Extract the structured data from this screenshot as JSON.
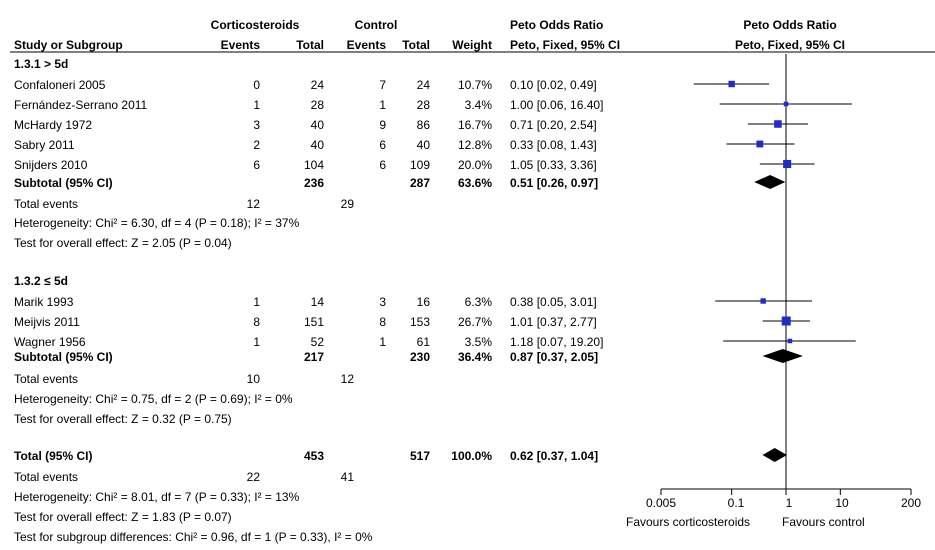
{
  "header": {
    "group1": "Corticosteroids",
    "group2": "Control",
    "or_header_left": "Peto Odds Ratio",
    "or_header_right": "Peto Odds Ratio",
    "study": "Study or Subgroup",
    "events1": "Events",
    "total1": "Total",
    "events2": "Events",
    "total2": "Total",
    "weight": "Weight",
    "ci_left": "Peto, Fixed, 95% CI",
    "ci_right": "Peto, Fixed, 95% CI"
  },
  "subgroups": [
    {
      "title": "1.3.1 > 5d",
      "studies": [
        {
          "name": "Confaloneri 2005",
          "e1": "0",
          "t1": "24",
          "e2": "7",
          "t2": "24",
          "weight": "10.7%",
          "ci": "0.10 [0.02, 0.49]"
        },
        {
          "name": "Fernández-Serrano 2011",
          "e1": "1",
          "t1": "28",
          "e2": "1",
          "t2": "28",
          "weight": "3.4%",
          "ci": "1.00 [0.06, 16.40]"
        },
        {
          "name": "McHardy 1972",
          "e1": "3",
          "t1": "40",
          "e2": "9",
          "t2": "86",
          "weight": "16.7%",
          "ci": "0.71 [0.20, 2.54]"
        },
        {
          "name": "Sabry 2011",
          "e1": "2",
          "t1": "40",
          "e2": "6",
          "t2": "40",
          "weight": "12.8%",
          "ci": "0.33 [0.08, 1.43]"
        },
        {
          "name": "Snijders 2010",
          "e1": "6",
          "t1": "104",
          "e2": "6",
          "t2": "109",
          "weight": "20.0%",
          "ci": "1.05 [0.33, 3.36]"
        }
      ],
      "subtotal": {
        "label": "Subtotal (95% CI)",
        "t1": "236",
        "t2": "287",
        "weight": "63.6%",
        "ci": "0.51 [0.26, 0.97]"
      },
      "total_events": {
        "label": "Total events",
        "e1": "12",
        "e2": "29"
      },
      "heterogeneity": "Heterogeneity: Chi² = 6.30, df = 4 (P = 0.18); I² = 37%",
      "overall": "Test for overall effect: Z = 2.05 (P = 0.04)"
    },
    {
      "title": "1.3.2 ≤ 5d",
      "studies": [
        {
          "name": "Marik 1993",
          "e1": "1",
          "t1": "14",
          "e2": "3",
          "t2": "16",
          "weight": "6.3%",
          "ci": "0.38 [0.05, 3.01]"
        },
        {
          "name": "Meijvis 2011",
          "e1": "8",
          "t1": "151",
          "e2": "8",
          "t2": "153",
          "weight": "26.7%",
          "ci": "1.01 [0.37, 2.77]"
        },
        {
          "name": "Wagner 1956",
          "e1": "1",
          "t1": "52",
          "e2": "1",
          "t2": "61",
          "weight": "3.5%",
          "ci": "1.18 [0.07, 19.20]"
        }
      ],
      "subtotal": {
        "label": "Subtotal (95% CI)",
        "t1": "217",
        "t2": "230",
        "weight": "36.4%",
        "ci": "0.87 [0.37, 2.05]"
      },
      "total_events": {
        "label": "Total events",
        "e1": "10",
        "e2": "12"
      },
      "heterogeneity": "Heterogeneity: Chi² = 0.75, df = 2 (P = 0.69); I² = 0%",
      "overall": "Test for overall effect: Z = 0.32 (P = 0.75)"
    }
  ],
  "total": {
    "label": "Total (95% CI)",
    "t1": "453",
    "t2": "517",
    "weight": "100.0%",
    "ci": "0.62 [0.37, 1.04]",
    "events_label": "Total events",
    "e1": "22",
    "e2": "41",
    "heterogeneity": "Heterogeneity: Chi² = 8.01, df = 7 (P = 0.33); I² = 13%",
    "overall": "Test for overall effect: Z = 1.83 (P = 0.07)",
    "subgroup_diff": "Test for subgroup differences: Chi² = 0.96, df = 1 (P = 0.33), I² = 0%"
  },
  "axis": {
    "ticks": [
      0.005,
      0.1,
      1,
      10,
      200
    ],
    "tick_labels": [
      "0.005",
      "0.1",
      "1",
      "10",
      "200"
    ],
    "favours_left": "Favours corticosteroids",
    "favours_right": "Favours control"
  },
  "chart_data": {
    "type": "forest",
    "scale": "log",
    "xlim": [
      0.005,
      200
    ],
    "null_line": 1,
    "marker_color": "#1f2ccc",
    "studies": [
      {
        "name": "Confaloneri 2005",
        "or": 0.1,
        "lo": 0.02,
        "hi": 0.49,
        "weight": 10.7
      },
      {
        "name": "Fernández-Serrano 2011",
        "or": 1.0,
        "lo": 0.06,
        "hi": 16.4,
        "weight": 3.4
      },
      {
        "name": "McHardy 1972",
        "or": 0.71,
        "lo": 0.2,
        "hi": 2.54,
        "weight": 16.7
      },
      {
        "name": "Sabry 2011",
        "or": 0.33,
        "lo": 0.08,
        "hi": 1.43,
        "weight": 12.8
      },
      {
        "name": "Snijders 2010",
        "or": 1.05,
        "lo": 0.33,
        "hi": 3.36,
        "weight": 20.0
      },
      {
        "name": "Marik 1993",
        "or": 0.38,
        "lo": 0.05,
        "hi": 3.01,
        "weight": 6.3
      },
      {
        "name": "Meijvis 2011",
        "or": 1.01,
        "lo": 0.37,
        "hi": 2.77,
        "weight": 26.7
      },
      {
        "name": "Wagner 1956",
        "or": 1.18,
        "lo": 0.07,
        "hi": 19.2,
        "weight": 3.5
      }
    ],
    "diamonds": [
      {
        "name": "Subtotal 1.3.1 > 5d",
        "or": 0.51,
        "lo": 0.26,
        "hi": 0.97
      },
      {
        "name": "Subtotal 1.3.2 ≤ 5d",
        "or": 0.87,
        "lo": 0.37,
        "hi": 2.05
      },
      {
        "name": "Total (95% CI)",
        "or": 0.62,
        "lo": 0.37,
        "hi": 1.04
      }
    ]
  }
}
